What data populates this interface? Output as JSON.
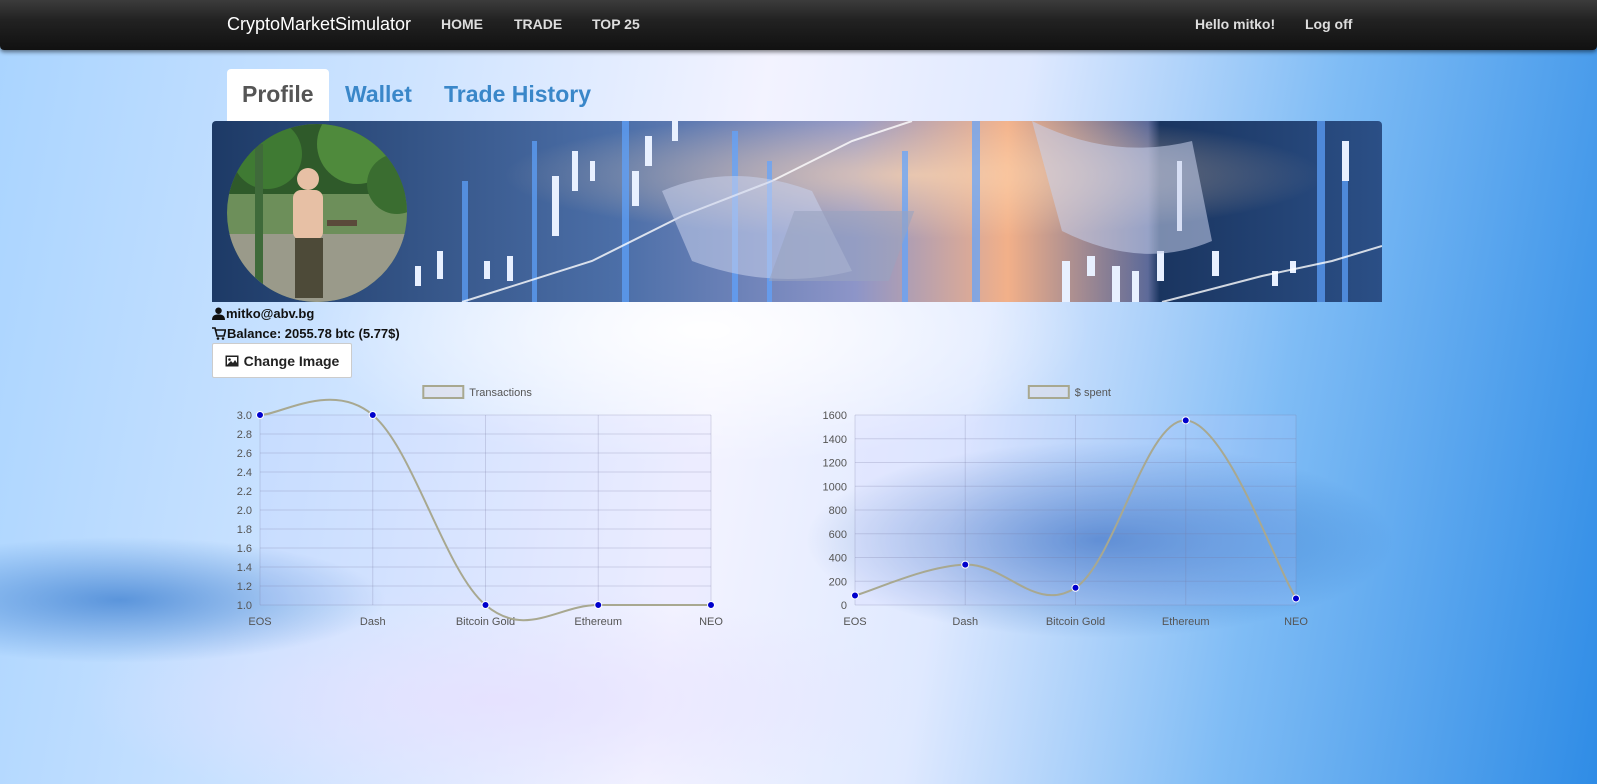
{
  "nav": {
    "brand": "CryptoMarketSimulator",
    "links": [
      "HOME",
      "TRADE",
      "TOP 25"
    ],
    "greeting": "Hello mitko!",
    "logoff": "Log off"
  },
  "tabs": [
    "Profile",
    "Wallet",
    "Trade History"
  ],
  "profile": {
    "email": "mitko@abv.bg",
    "balance": "Balance: 2055.78 btc (5.77$)",
    "change_image": "Change Image"
  },
  "icons": {
    "user": "user-icon",
    "cart": "shopping-cart-icon",
    "picture": "picture-icon"
  },
  "colors": {
    "accent": "#3a87c9",
    "line": "#a8a890",
    "point": "#0000cc"
  },
  "chart_data": [
    {
      "type": "line",
      "categories": [
        "EOS",
        "Dash",
        "Bitcoin Gold",
        "Ethereum",
        "NEO"
      ],
      "series": [
        {
          "name": "Transactions",
          "values": [
            3,
            3,
            1,
            1,
            1
          ]
        }
      ],
      "ylim": [
        1.0,
        3.0
      ],
      "yticks": [
        "3.0",
        "2.8",
        "2.6",
        "2.4",
        "2.2",
        "2.0",
        "1.8",
        "1.6",
        "1.4",
        "1.2",
        "1.0"
      ],
      "grid": true,
      "legend": "top"
    },
    {
      "type": "line",
      "categories": [
        "EOS",
        "Dash",
        "Bitcoin Gold",
        "Ethereum",
        "NEO"
      ],
      "series": [
        {
          "name": "$ spent",
          "values": [
            80,
            340,
            145,
            1555,
            55
          ]
        }
      ],
      "ylim": [
        0,
        1600
      ],
      "yticks": [
        "1600",
        "1400",
        "1200",
        "1000",
        "800",
        "600",
        "400",
        "200",
        "0"
      ],
      "grid": true,
      "legend": "top"
    }
  ]
}
